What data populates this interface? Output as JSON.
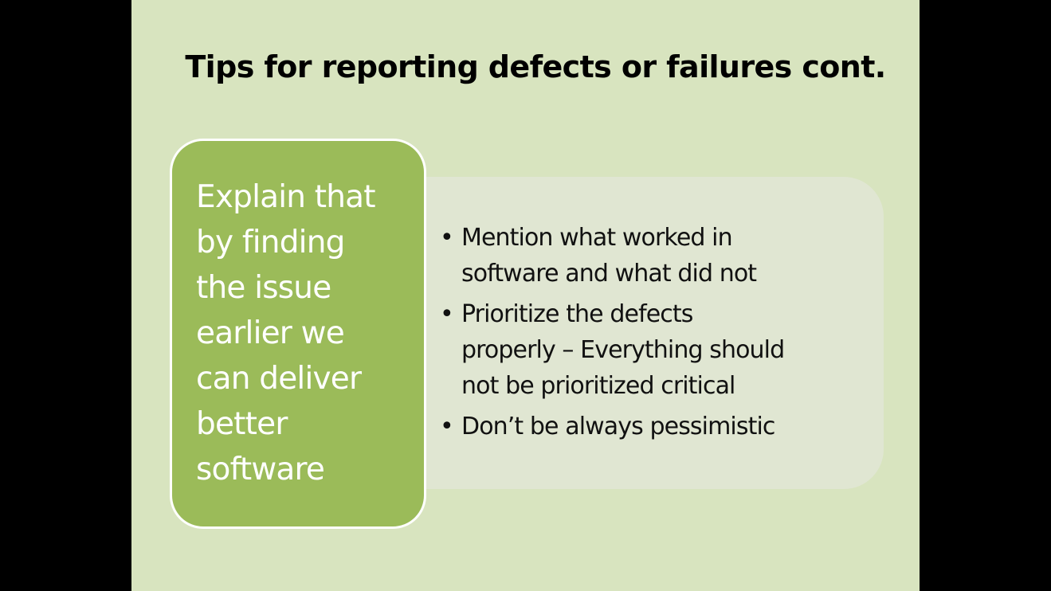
{
  "slide": {
    "title": "Tips for reporting defects or failures cont.",
    "main_box": {
      "lines": [
        "Explain that",
        "by finding",
        "the issue",
        "earlier we",
        "can deliver",
        "better",
        "software"
      ]
    },
    "bullets": [
      {
        "symbol": "•",
        "lines": [
          "Mention what worked in",
          "software and what did not"
        ]
      },
      {
        "symbol": "•",
        "lines": [
          "Prioritize the defects",
          "properly – Everything should",
          "not be prioritized critical"
        ]
      },
      {
        "symbol": "•",
        "lines": [
          "Don’t be always pessimistic"
        ]
      }
    ]
  },
  "colors": {
    "slide_background": "#d8e4bf",
    "main_box_fill": "#9bbb59",
    "main_box_border": "#ffffff",
    "bullet_panel": "#e0e6d2",
    "letterbox": "#000000"
  }
}
